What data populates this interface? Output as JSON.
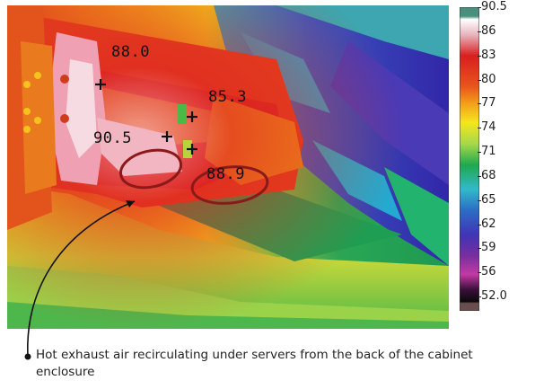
{
  "image": {
    "description_icon": "thermal-camera-image",
    "markers": [
      {
        "value": "88.0"
      },
      {
        "value": "85.3"
      },
      {
        "value": "90.5"
      },
      {
        "value": "88.9"
      }
    ]
  },
  "colorbar": {
    "ticks": [
      "90.5",
      "86",
      "83",
      "80",
      "77",
      "74",
      "71",
      "68",
      "65",
      "62",
      "59",
      "56",
      "52.0"
    ],
    "colors": [
      "#4a8f7d",
      "#ffffff",
      "#e8b6c0",
      "#d81f1f",
      "#e8541c",
      "#f3a21a",
      "#f5e61d",
      "#a7d84a",
      "#1fa84e",
      "#32b9ca",
      "#2b6cc4",
      "#4134b6",
      "#7a2e9e",
      "#c23aa4",
      "#3a0f3a",
      "#0a0a0a",
      "#6a4e4e"
    ]
  },
  "caption": {
    "text": "Hot exhaust air recirculating under servers from the back of the cabinet enclosure"
  }
}
